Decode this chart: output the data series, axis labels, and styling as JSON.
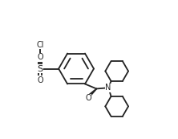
{
  "background_color": "#ffffff",
  "line_color": "#222222",
  "line_width": 1.3,
  "figsize": [
    2.22,
    1.73
  ],
  "dpi": 100,
  "text_color": "#222222",
  "font_size": 7.0,
  "xlim": [
    0,
    11
  ],
  "ylim": [
    0,
    8.5
  ]
}
